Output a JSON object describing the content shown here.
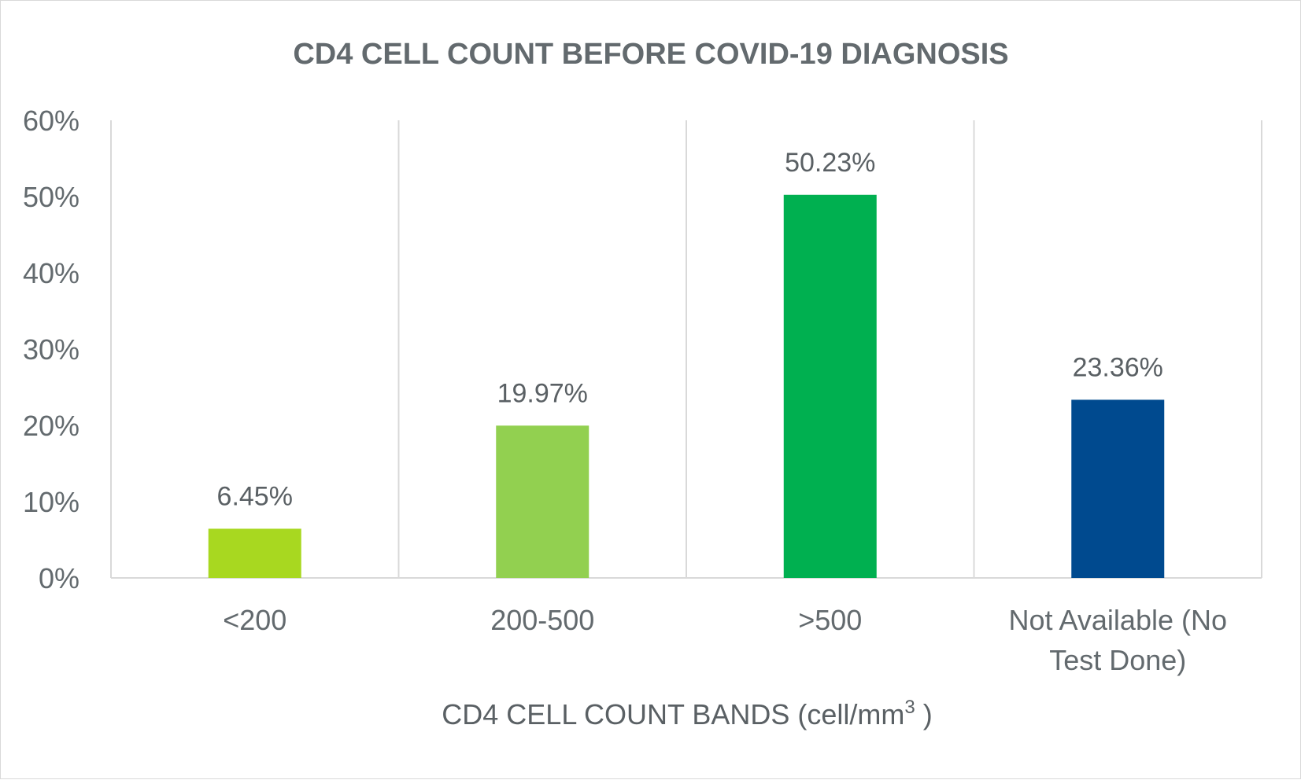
{
  "chart_data": {
    "type": "bar",
    "title": "CD4 CELL COUNT BEFORE COVID-19 DIAGNOSIS",
    "xlabel": "CD4 CELL COUNT BANDS (cell/mm",
    "xlabel_superscript": "3",
    "xlabel_suffix": " )",
    "ylabel": "",
    "ylim": [
      0,
      60
    ],
    "y_ticks": [
      {
        "value": 0,
        "label": "0%"
      },
      {
        "value": 10,
        "label": "10%"
      },
      {
        "value": 20,
        "label": "20%"
      },
      {
        "value": 30,
        "label": "30%"
      },
      {
        "value": 40,
        "label": "40%"
      },
      {
        "value": 50,
        "label": "50%"
      },
      {
        "value": 60,
        "label": "60%"
      }
    ],
    "categories": [
      [
        "<200"
      ],
      [
        "200-500"
      ],
      [
        ">500"
      ],
      [
        "Not Available (No",
        "Test Done)"
      ]
    ],
    "values": [
      6.45,
      19.97,
      50.23,
      23.36
    ],
    "data_labels": [
      "6.45%",
      "19.97%",
      "50.23%",
      "23.36%"
    ],
    "colors": [
      "#a8d820",
      "#92d050",
      "#00b050",
      "#004a8f"
    ],
    "grid": true,
    "grid_orientation": "vertical",
    "legend": "none"
  },
  "colors": {
    "axis": "#d9d9d9",
    "grid": "#d9d9d9",
    "text": "#636a6e"
  }
}
